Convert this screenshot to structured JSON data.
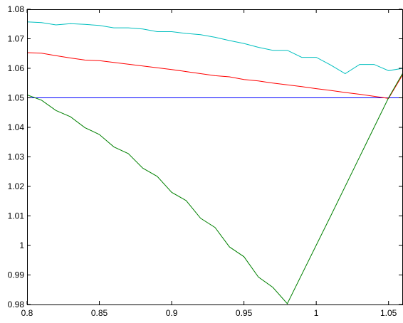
{
  "chart_data": {
    "type": "line",
    "xlim": [
      0.8,
      1.06
    ],
    "ylim": [
      0.98,
      1.08
    ],
    "x_ticks": [
      "0.8",
      "0.85",
      "0.9",
      "0.95",
      "1",
      "1.05"
    ],
    "y_ticks": [
      "0.98",
      "0.99",
      "1",
      "1.01",
      "1.02",
      "1.03",
      "1.04",
      "1.05",
      "1.06",
      "1.07",
      "1.08"
    ],
    "x_tick_values": [
      0.8,
      0.85,
      0.9,
      0.95,
      1.0,
      1.05
    ],
    "y_tick_values": [
      0.98,
      0.99,
      1.0,
      1.01,
      1.02,
      1.03,
      1.04,
      1.05,
      1.06,
      1.07,
      1.08
    ],
    "grid": false,
    "series": [
      {
        "color": "#0000ff",
        "points": [
          [
            0.8,
            1.05
          ],
          [
            1.06,
            1.05
          ]
        ]
      },
      {
        "color": "#00bfbf",
        "points": [
          [
            0.8,
            1.0757
          ],
          [
            0.81,
            1.0755
          ],
          [
            0.82,
            1.0747
          ],
          [
            0.83,
            1.0751
          ],
          [
            0.84,
            1.0749
          ],
          [
            0.85,
            1.0745
          ],
          [
            0.86,
            1.0737
          ],
          [
            0.87,
            1.0737
          ],
          [
            0.88,
            1.0733
          ],
          [
            0.89,
            1.0724
          ],
          [
            0.9,
            1.0724
          ],
          [
            0.91,
            1.0718
          ],
          [
            0.92,
            1.0714
          ],
          [
            0.93,
            1.0705
          ],
          [
            0.94,
            1.0694
          ],
          [
            0.95,
            1.0684
          ],
          [
            0.96,
            1.0671
          ],
          [
            0.97,
            1.0661
          ],
          [
            0.98,
            1.0661
          ],
          [
            0.99,
            1.0637
          ],
          [
            1.0,
            1.0637
          ],
          [
            1.01,
            1.0611
          ],
          [
            1.02,
            1.0582
          ],
          [
            1.03,
            1.0613
          ],
          [
            1.04,
            1.0613
          ],
          [
            1.05,
            1.0592
          ],
          [
            1.06,
            1.06
          ]
        ]
      },
      {
        "color": "#ff0000",
        "points": [
          [
            0.8,
            1.0653
          ],
          [
            0.81,
            1.0651
          ],
          [
            0.82,
            1.0643
          ],
          [
            0.83,
            1.0635
          ],
          [
            0.84,
            1.0628
          ],
          [
            0.85,
            1.0626
          ],
          [
            0.86,
            1.062
          ],
          [
            0.87,
            1.0614
          ],
          [
            0.88,
            1.0608
          ],
          [
            0.89,
            1.0602
          ],
          [
            0.9,
            1.0596
          ],
          [
            0.91,
            1.0589
          ],
          [
            0.92,
            1.0582
          ],
          [
            0.93,
            1.0575
          ],
          [
            0.94,
            1.0571
          ],
          [
            0.95,
            1.0562
          ],
          [
            0.96,
            1.0557
          ],
          [
            0.97,
            1.055
          ],
          [
            0.98,
            1.0544
          ],
          [
            0.99,
            1.0538
          ],
          [
            1.0,
            1.0531
          ],
          [
            1.01,
            1.0525
          ],
          [
            1.02,
            1.0518
          ],
          [
            1.03,
            1.0512
          ],
          [
            1.04,
            1.0505
          ],
          [
            1.05,
            1.0498
          ],
          [
            1.06,
            1.058
          ]
        ]
      },
      {
        "color": "#008000",
        "points": [
          [
            0.8,
            1.051
          ],
          [
            0.81,
            1.0492
          ],
          [
            0.82,
            1.0457
          ],
          [
            0.83,
            1.0436
          ],
          [
            0.84,
            1.0399
          ],
          [
            0.85,
            1.0376
          ],
          [
            0.86,
            1.0334
          ],
          [
            0.87,
            1.0311
          ],
          [
            0.88,
            1.0262
          ],
          [
            0.89,
            1.0234
          ],
          [
            0.9,
            1.018
          ],
          [
            0.91,
            1.0152
          ],
          [
            0.92,
            1.0092
          ],
          [
            0.93,
            1.0061
          ],
          [
            0.94,
            0.9995
          ],
          [
            0.95,
            0.9962
          ],
          [
            0.96,
            0.9893
          ],
          [
            0.97,
            0.9858
          ],
          [
            0.98,
            0.9803
          ],
          [
            1.01,
            1.01
          ],
          [
            1.05,
            1.05
          ],
          [
            1.06,
            1.0585
          ]
        ]
      }
    ]
  }
}
